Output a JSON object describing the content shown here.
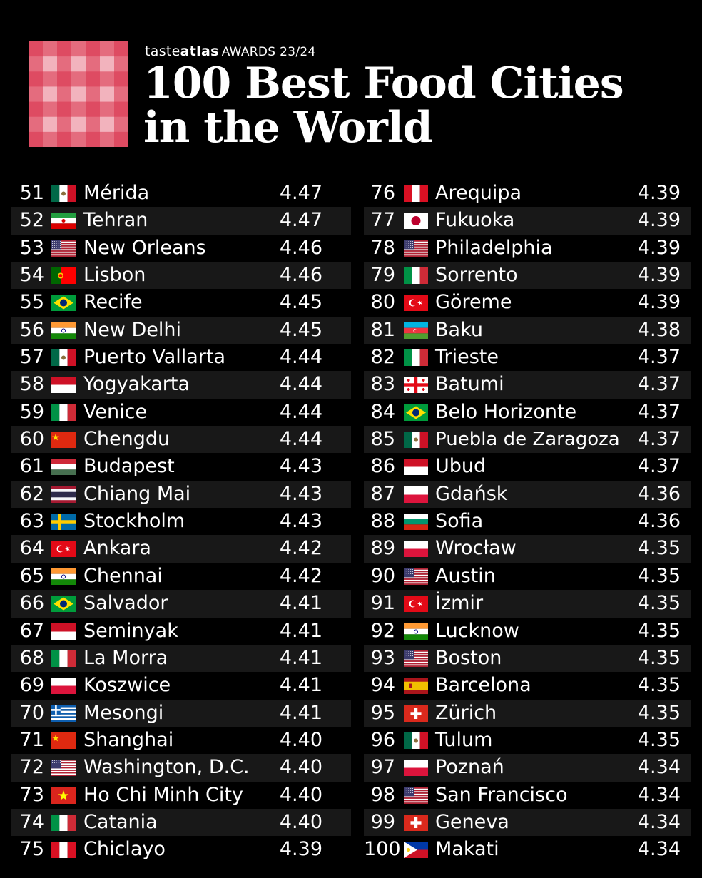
{
  "brand": {
    "taste": "taste",
    "atlas": "atlas",
    "awards": "AWARDS 23/24"
  },
  "title": {
    "line1": "100 Best Food Cities",
    "line2": "in the World"
  },
  "colors": {
    "background": "#000000",
    "text": "#ffffff",
    "checker_red": "#d9324a",
    "checker_pink": "#f2b3bd"
  },
  "left_rows": [
    {
      "rank": "51",
      "flag": "mx",
      "city": "Mérida",
      "score": "4.47"
    },
    {
      "rank": "52",
      "flag": "ir",
      "city": "Tehran",
      "score": "4.47"
    },
    {
      "rank": "53",
      "flag": "us",
      "city": "New Orleans",
      "score": "4.46"
    },
    {
      "rank": "54",
      "flag": "pt",
      "city": "Lisbon",
      "score": "4.46"
    },
    {
      "rank": "55",
      "flag": "br",
      "city": "Recife",
      "score": "4.45"
    },
    {
      "rank": "56",
      "flag": "in",
      "city": "New Delhi",
      "score": "4.45"
    },
    {
      "rank": "57",
      "flag": "mx",
      "city": "Puerto Vallarta",
      "score": "4.44"
    },
    {
      "rank": "58",
      "flag": "id",
      "city": "Yogyakarta",
      "score": "4.44"
    },
    {
      "rank": "59",
      "flag": "it",
      "city": "Venice",
      "score": "4.44"
    },
    {
      "rank": "60",
      "flag": "cn",
      "city": "Chengdu",
      "score": "4.44"
    },
    {
      "rank": "61",
      "flag": "hu",
      "city": "Budapest",
      "score": "4.43"
    },
    {
      "rank": "62",
      "flag": "th",
      "city": "Chiang Mai",
      "score": "4.43"
    },
    {
      "rank": "63",
      "flag": "se",
      "city": "Stockholm",
      "score": "4.43"
    },
    {
      "rank": "64",
      "flag": "tr",
      "city": "Ankara",
      "score": "4.42"
    },
    {
      "rank": "65",
      "flag": "in",
      "city": "Chennai",
      "score": "4.42"
    },
    {
      "rank": "66",
      "flag": "br",
      "city": "Salvador",
      "score": "4.41"
    },
    {
      "rank": "67",
      "flag": "id",
      "city": "Seminyak",
      "score": "4.41"
    },
    {
      "rank": "68",
      "flag": "it",
      "city": "La Morra",
      "score": "4.41"
    },
    {
      "rank": "69",
      "flag": "pl",
      "city": "Koszwice",
      "score": "4.41"
    },
    {
      "rank": "70",
      "flag": "gr",
      "city": "Mesongi",
      "score": "4.41"
    },
    {
      "rank": "71",
      "flag": "cn",
      "city": "Shanghai",
      "score": "4.40"
    },
    {
      "rank": "72",
      "flag": "us",
      "city": "Washington, D.C.",
      "score": "4.40"
    },
    {
      "rank": "73",
      "flag": "vn",
      "city": "Ho Chi Minh City",
      "score": "4.40"
    },
    {
      "rank": "74",
      "flag": "it",
      "city": "Catania",
      "score": "4.40"
    },
    {
      "rank": "75",
      "flag": "pe",
      "city": "Chiclayo",
      "score": "4.39"
    }
  ],
  "right_rows": [
    {
      "rank": "76",
      "flag": "pe",
      "city": "Arequipa",
      "score": "4.39"
    },
    {
      "rank": "77",
      "flag": "jp",
      "city": "Fukuoka",
      "score": "4.39"
    },
    {
      "rank": "78",
      "flag": "us",
      "city": "Philadelphia",
      "score": "4.39"
    },
    {
      "rank": "79",
      "flag": "it",
      "city": "Sorrento",
      "score": "4.39"
    },
    {
      "rank": "80",
      "flag": "tr",
      "city": "Göreme",
      "score": "4.39"
    },
    {
      "rank": "81",
      "flag": "az",
      "city": "Baku",
      "score": "4.38"
    },
    {
      "rank": "82",
      "flag": "it",
      "city": "Trieste",
      "score": "4.37"
    },
    {
      "rank": "83",
      "flag": "ge",
      "city": "Batumi",
      "score": "4.37"
    },
    {
      "rank": "84",
      "flag": "br",
      "city": "Belo Horizonte",
      "score": "4.37"
    },
    {
      "rank": "85",
      "flag": "mx",
      "city": "Puebla de Zaragoza",
      "score": "4.37"
    },
    {
      "rank": "86",
      "flag": "id",
      "city": "Ubud",
      "score": "4.37"
    },
    {
      "rank": "87",
      "flag": "pl",
      "city": "Gdańsk",
      "score": "4.36"
    },
    {
      "rank": "88",
      "flag": "bg",
      "city": "Sofia",
      "score": "4.36"
    },
    {
      "rank": "89",
      "flag": "pl",
      "city": "Wrocław",
      "score": "4.35"
    },
    {
      "rank": "90",
      "flag": "us",
      "city": "Austin",
      "score": "4.35"
    },
    {
      "rank": "91",
      "flag": "tr",
      "city": "İzmir",
      "score": "4.35"
    },
    {
      "rank": "92",
      "flag": "in",
      "city": "Lucknow",
      "score": "4.35"
    },
    {
      "rank": "93",
      "flag": "us",
      "city": "Boston",
      "score": "4.35"
    },
    {
      "rank": "94",
      "flag": "es",
      "city": "Barcelona",
      "score": "4.35"
    },
    {
      "rank": "95",
      "flag": "ch",
      "city": "Zürich",
      "score": "4.35"
    },
    {
      "rank": "96",
      "flag": "mx",
      "city": "Tulum",
      "score": "4.35"
    },
    {
      "rank": "97",
      "flag": "pl",
      "city": "Poznań",
      "score": "4.34"
    },
    {
      "rank": "98",
      "flag": "us",
      "city": "San Francisco",
      "score": "4.34"
    },
    {
      "rank": "99",
      "flag": "ch",
      "city": "Geneva",
      "score": "4.34"
    },
    {
      "rank": "100",
      "flag": "ph",
      "city": "Makati",
      "score": "4.34"
    }
  ]
}
